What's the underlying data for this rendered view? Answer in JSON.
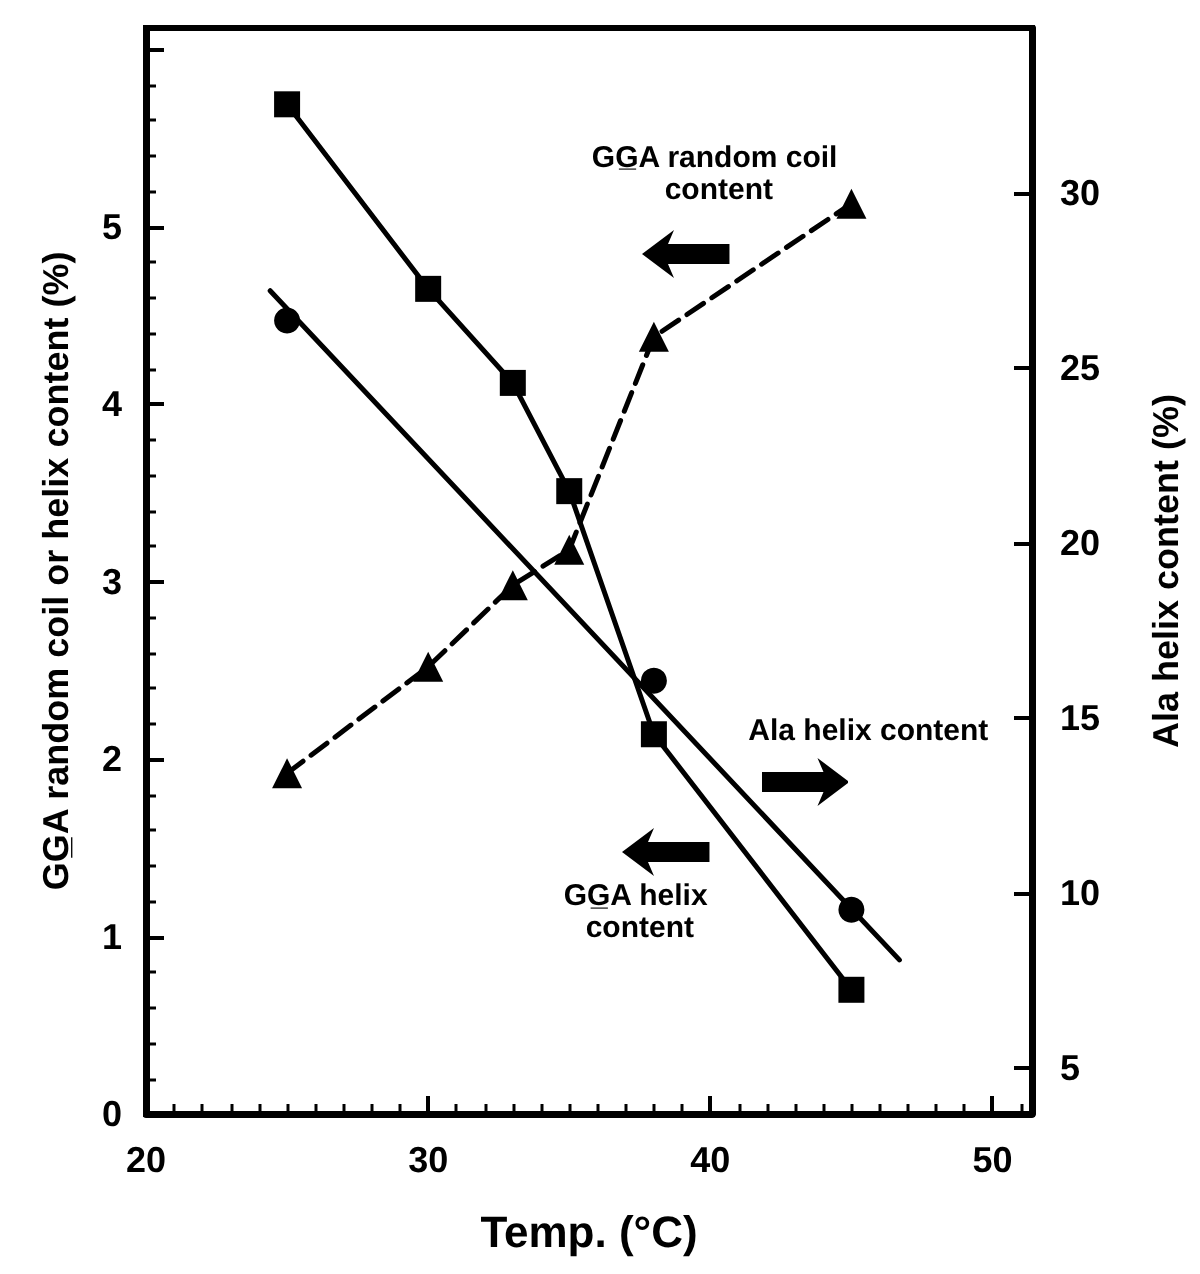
{
  "chart_data": {
    "type": "line",
    "xlabel": "Temp. (°C)",
    "ylabel": "GG̲A random coil or helix content (%)",
    "y2label": "Ala helix content (%)",
    "x": [
      25,
      30,
      33,
      35,
      38,
      45
    ],
    "series": [
      {
        "color": "#000000",
        "marker": "square",
        "line_style": "solid",
        "values": [
          5.69,
          4.65,
          4.12,
          3.51,
          2.14,
          0.7
        ]
      },
      {
        "color": "#000000",
        "marker": "triangle",
        "line_style": "dashed",
        "values": [
          1.92,
          2.52,
          2.98,
          3.18,
          4.38,
          5.13
        ]
      },
      {
        "type": "scatter",
        "axis": "y2",
        "color": "#000000",
        "marker": "circle",
        "x": [
          25,
          38,
          45
        ],
        "values": [
          26.35,
          16.07,
          9.53
        ]
      },
      {
        "type": "line",
        "axis": "y2",
        "color": "#000000",
        "marker": "none",
        "line_style": "solid",
        "x": [
          24.4,
          46.7
        ],
        "values": [
          27.2,
          8.1
        ]
      }
    ],
    "annotations": [
      "GG̲A helix content",
      "GG̲A random coil content",
      "Ala helix content"
    ],
    "xlim": [
      20,
      51.4
    ],
    "xticks": [
      20,
      30,
      40,
      50
    ],
    "ylim": [
      0,
      6.12
    ],
    "yticks": [
      0,
      1,
      2,
      3,
      4,
      5
    ],
    "y2lim": [
      3.7,
      34.7
    ],
    "y2ticks": [
      5,
      10,
      15,
      20,
      25,
      30
    ],
    "grid": false
  }
}
